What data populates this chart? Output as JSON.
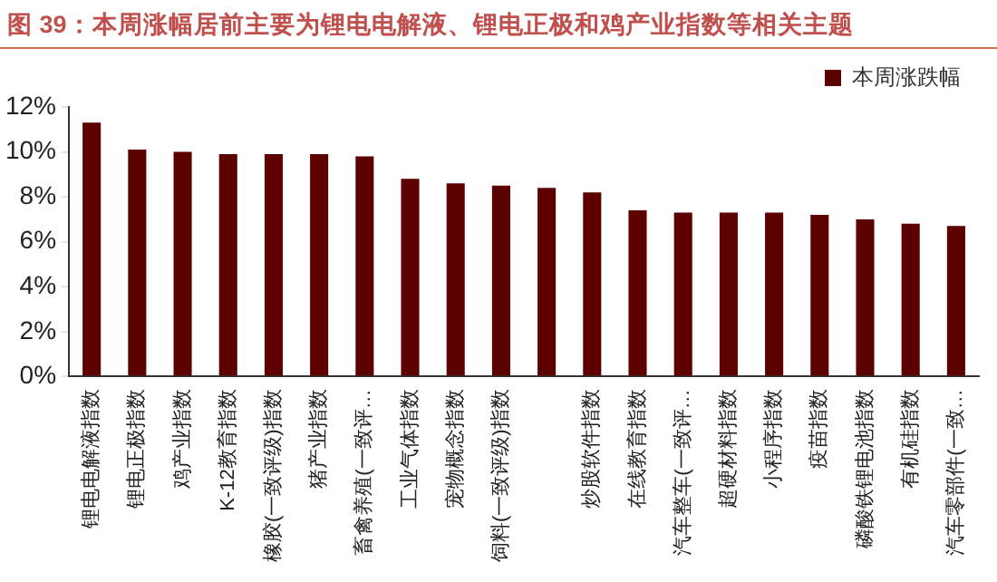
{
  "chart_data": {
    "type": "bar",
    "title": "图 39：本周涨幅居前主要为锂电电解液、锂电正极和鸡产业指数等相关主题",
    "categories": [
      "锂电电解液指数",
      "锂电正极指数",
      "鸡产业指数",
      "K-12教育指数",
      "橡胶(一致评级)指数",
      "猪产业指数",
      "畜禽养殖(一致评…",
      "工业气体指数",
      "宠物概念指数",
      "饲料(一致评级)指数",
      null,
      "炒股软件指数",
      "在线教育指数",
      "汽车整车(一致评…",
      "超硬材料指数",
      "小程序指数",
      "疫苗指数",
      "磷酸铁锂电池指数",
      "有机硅指数",
      "汽车零部件(一致…"
    ],
    "series": [
      {
        "name": "本周涨跌幅",
        "color": "#5c0000",
        "values": [
          11.3,
          10.1,
          10.0,
          9.9,
          9.9,
          9.9,
          9.8,
          8.8,
          8.6,
          8.5,
          8.4,
          8.2,
          7.4,
          7.3,
          7.3,
          7.3,
          7.2,
          7.0,
          6.8,
          6.7
        ]
      }
    ],
    "ylim": [
      0,
      12
    ],
    "yticks": [
      {
        "value": 0,
        "label": "0%"
      },
      {
        "value": 2,
        "label": "2%"
      },
      {
        "value": 4,
        "label": "4%"
      },
      {
        "value": 6,
        "label": "6%"
      },
      {
        "value": 8,
        "label": "8%"
      },
      {
        "value": 10,
        "label": "10%"
      },
      {
        "value": 12,
        "label": "12%"
      }
    ],
    "grid": false,
    "legend": "top right"
  }
}
